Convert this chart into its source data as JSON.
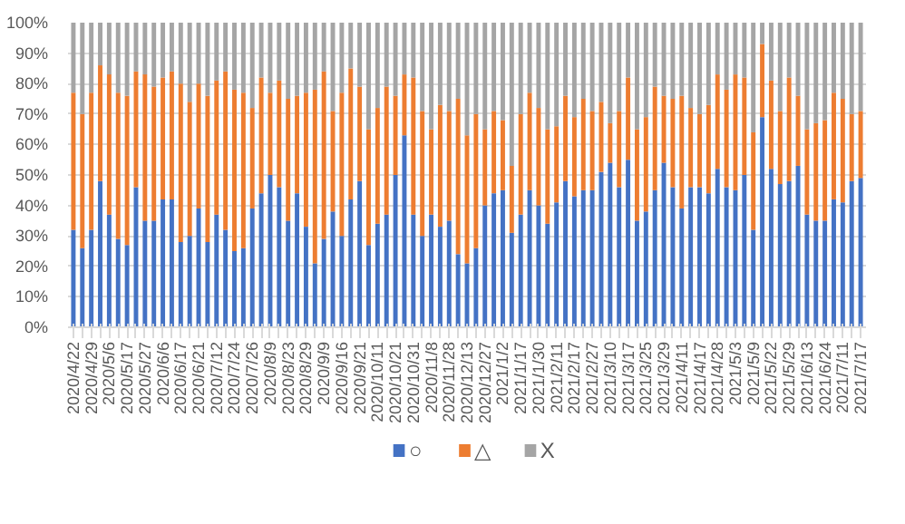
{
  "chart_data": {
    "type": "bar",
    "stacked": true,
    "categories": [
      "2020/4/22",
      null,
      "2020/4/29",
      null,
      "2020/5/6",
      null,
      "2020/5/17",
      null,
      "2020/5/27",
      null,
      "2020/6/6",
      null,
      "2020/6/17",
      null,
      "2020/6/21",
      null,
      "2020/7/12",
      null,
      "2020/7/24",
      null,
      "2020/7/26",
      null,
      "2020/8/9",
      null,
      "2020/8/23",
      null,
      "2020/8/29",
      null,
      "2020/9/9",
      null,
      "2020/9/16",
      null,
      "2020/9/21",
      null,
      "2020/10/11",
      null,
      "2020/10/21",
      null,
      "2020/10/31",
      null,
      "2020/11/8",
      null,
      "2020/11/28",
      null,
      "2020/12/13",
      null,
      "2020/12/27",
      null,
      "2021/1/2",
      null,
      "2021/1/17",
      null,
      "2021/1/30",
      null,
      "2021/2/11",
      null,
      "2021/2/17",
      null,
      "2021/2/27",
      null,
      "2021/3/10",
      null,
      "2021/3/17",
      null,
      "2021/3/25",
      null,
      "2021/3/29",
      null,
      "2021/4/11",
      null,
      "2021/4/17",
      null,
      "2021/4/28",
      null,
      "2021/5/3",
      null,
      "2021/5/9",
      null,
      "2021/5/22",
      null,
      "2021/5/29",
      null,
      "2021/6/13",
      null,
      "2021/6/24",
      null,
      "2021/7/11",
      null,
      "2021/7/17"
    ],
    "series": [
      {
        "name": "○",
        "color": "#4472c4",
        "values": [
          32,
          26,
          32,
          48,
          37,
          29,
          27,
          46,
          35,
          35,
          42,
          42,
          28,
          30,
          39,
          28,
          37,
          32,
          25,
          26,
          39,
          44,
          50,
          46,
          35,
          44,
          33,
          21,
          29,
          38,
          30,
          42,
          48,
          27,
          34,
          37,
          50,
          63,
          37,
          30,
          37,
          33,
          35,
          24,
          21,
          26,
          40,
          44,
          45,
          31,
          37,
          45,
          40,
          34,
          41,
          48,
          43,
          45,
          45,
          51,
          54,
          46,
          55,
          35,
          38,
          45,
          54,
          46,
          39,
          46,
          46,
          44,
          52,
          46,
          45,
          50,
          32,
          69,
          52,
          47,
          48,
          53,
          37,
          35,
          35,
          42,
          41,
          48,
          49
        ]
      },
      {
        "name": "△",
        "color": "#ed7d31",
        "values": [
          45,
          44,
          45,
          38,
          46,
          48,
          49,
          38,
          48,
          44,
          40,
          42,
          52,
          44,
          41,
          48,
          44,
          52,
          53,
          51,
          33,
          38,
          27,
          35,
          40,
          32,
          44,
          57,
          55,
          33,
          47,
          43,
          31,
          38,
          38,
          42,
          26,
          20,
          45,
          41,
          28,
          40,
          36,
          51,
          42,
          44,
          25,
          27,
          23,
          22,
          33,
          32,
          32,
          31,
          25,
          28,
          26,
          30,
          26,
          23,
          13,
          25,
          27,
          30,
          31,
          34,
          22,
          29,
          37,
          26,
          24,
          29,
          31,
          32,
          38,
          32,
          32,
          24,
          29,
          24,
          34,
          23,
          28,
          32,
          33,
          35,
          34,
          22,
          22
        ]
      },
      {
        "name": "X",
        "color": "#a5a5a5",
        "values": [
          23,
          30,
          23,
          14,
          17,
          23,
          24,
          16,
          17,
          21,
          18,
          16,
          20,
          26,
          20,
          24,
          19,
          16,
          22,
          23,
          28,
          18,
          23,
          19,
          25,
          24,
          23,
          22,
          16,
          29,
          23,
          15,
          21,
          35,
          28,
          21,
          24,
          17,
          18,
          29,
          35,
          27,
          29,
          25,
          37,
          30,
          35,
          29,
          32,
          47,
          30,
          23,
          28,
          35,
          34,
          24,
          31,
          25,
          29,
          26,
          33,
          29,
          18,
          35,
          31,
          21,
          24,
          25,
          24,
          28,
          30,
          27,
          17,
          22,
          17,
          18,
          36,
          7,
          19,
          29,
          18,
          24,
          35,
          33,
          32,
          23,
          25,
          30,
          29
        ]
      }
    ],
    "ylim": [
      0,
      100
    ],
    "yticks": [
      {
        "value": 0,
        "label": "0%"
      },
      {
        "value": 10,
        "label": "10%"
      },
      {
        "value": 20,
        "label": "20%"
      },
      {
        "value": 30,
        "label": "30%"
      },
      {
        "value": 40,
        "label": "40%"
      },
      {
        "value": 50,
        "label": "50%"
      },
      {
        "value": 60,
        "label": "60%"
      },
      {
        "value": 70,
        "label": "70%"
      },
      {
        "value": 80,
        "label": "80%"
      },
      {
        "value": 90,
        "label": "90%"
      },
      {
        "value": 100,
        "label": "100%"
      }
    ],
    "grid": "y",
    "legend": "bottom"
  }
}
